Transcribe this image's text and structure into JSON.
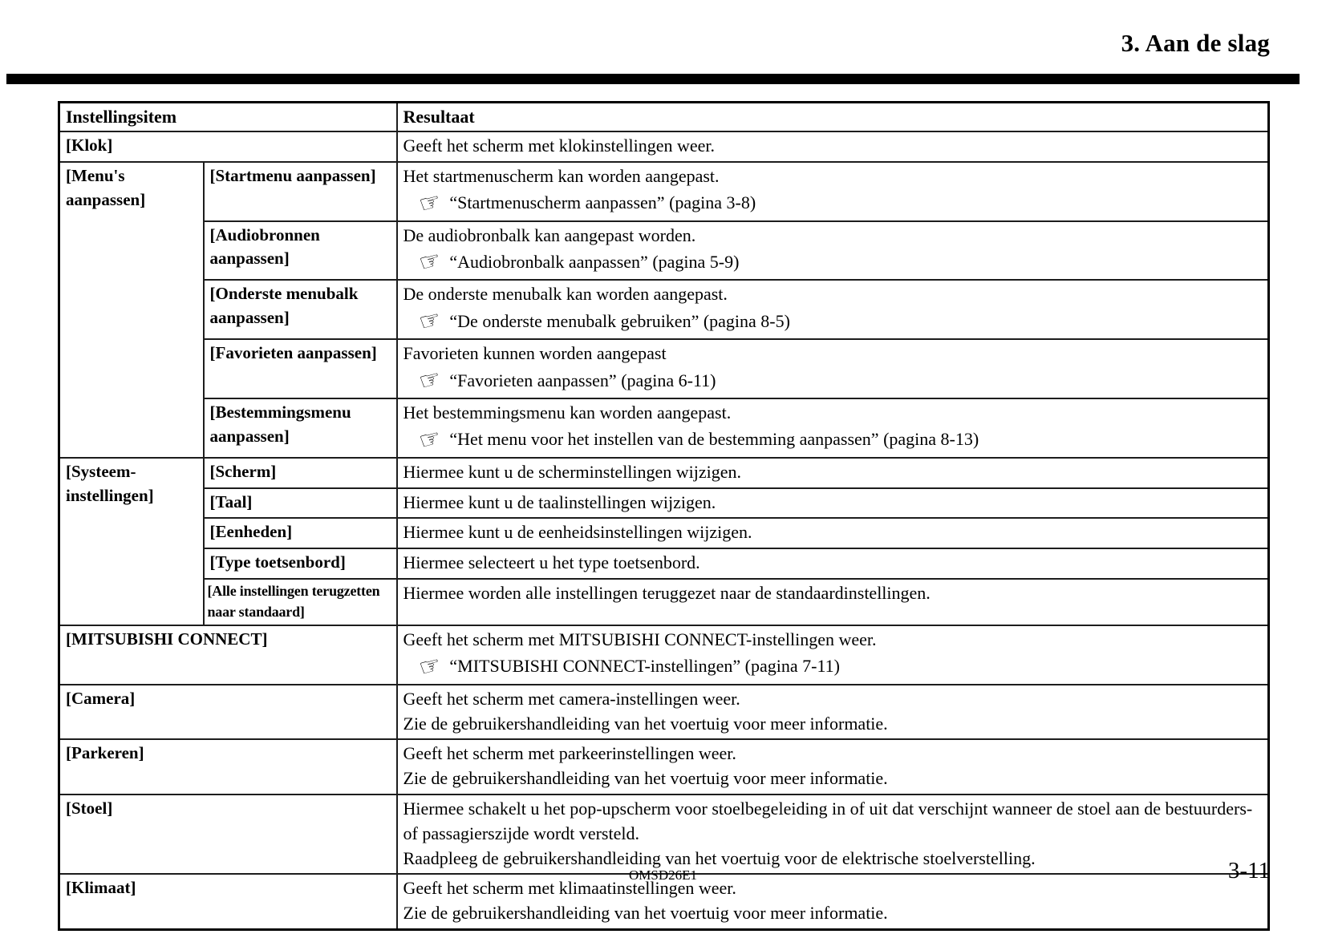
{
  "page": {
    "title": "3. Aan de slag",
    "footer_code": "OMSD26E1",
    "page_number": "3-11"
  },
  "icons": {
    "ref_hand": "☞"
  },
  "table": {
    "header": {
      "item": "Instellingsitem",
      "result": "Resultaat"
    },
    "rows": [
      {
        "item": "[Klok]",
        "merged": true,
        "lines": [
          {
            "type": "text",
            "text": "Geeft het scherm met klokinstellingen weer."
          }
        ]
      },
      {
        "group": {
          "label": "[Menu's aanpassen]",
          "rowspan": 5
        },
        "item": "[Startmenu aanpassen]",
        "lines": [
          {
            "type": "text",
            "text": "Het startmenuscherm kan worden aangepast."
          },
          {
            "type": "ref",
            "text": "“Startmenuscherm aanpassen” (pagina 3-8)"
          }
        ]
      },
      {
        "item": "[Audiobronnen aanpassen]",
        "lines": [
          {
            "type": "text",
            "text": "De audiobronbalk kan aangepast worden."
          },
          {
            "type": "ref",
            "text": "“Audiobronbalk aanpassen” (pagina 5-9)"
          }
        ]
      },
      {
        "item": "[Onderste menubalk aanpassen]",
        "lines": [
          {
            "type": "text",
            "text": "De onderste menubalk kan worden aangepast."
          },
          {
            "type": "ref",
            "text": "“De onderste menubalk gebruiken” (pagina 8-5)"
          }
        ]
      },
      {
        "item": "[Favorieten aanpassen]",
        "lines": [
          {
            "type": "text",
            "text": "Favorieten kunnen worden aangepast"
          },
          {
            "type": "ref",
            "text": "“Favorieten aanpassen” (pagina 6-11)"
          }
        ]
      },
      {
        "item": "[Bestemmingsmenu aanpassen]",
        "lines": [
          {
            "type": "text",
            "text": "Het bestemmingsmenu kan worden aangepast."
          },
          {
            "type": "ref",
            "text": "“Het menu voor het instellen van de bestemming aanpassen” (pagina 8-13)"
          }
        ]
      },
      {
        "group": {
          "label": "[Systeem-instellingen]",
          "rowspan": 5
        },
        "item": "[Scherm]",
        "lines": [
          {
            "type": "text",
            "text": "Hiermee kunt u de scherminstellingen wijzigen."
          }
        ]
      },
      {
        "item": "[Taal]",
        "lines": [
          {
            "type": "text",
            "text": "Hiermee kunt u de taalinstellingen wijzigen."
          }
        ]
      },
      {
        "item": "[Eenheden]",
        "lines": [
          {
            "type": "text",
            "text": "Hiermee kunt u de eenheidsinstellingen wijzigen."
          }
        ]
      },
      {
        "item": "[Type toetsenbord]",
        "lines": [
          {
            "type": "text",
            "text": "Hiermee selecteert u het type toetsenbord."
          }
        ]
      },
      {
        "item": "[Alle instellingen terugzetten naar standaard]",
        "lines": [
          {
            "type": "text",
            "text": "Hiermee worden alle instellingen teruggezet naar de standaardinstellingen."
          }
        ]
      },
      {
        "item": "[MITSUBISHI CONNECT]",
        "merged": true,
        "lines": [
          {
            "type": "text",
            "text": "Geeft het scherm met MITSUBISHI CONNECT-instellingen weer."
          },
          {
            "type": "ref",
            "text": "“MITSUBISHI CONNECT-instellingen” (pagina 7-11)"
          }
        ]
      },
      {
        "item": "[Camera]",
        "merged": true,
        "lines": [
          {
            "type": "text",
            "text": "Geeft het scherm met camera-instellingen weer."
          },
          {
            "type": "text",
            "text": "Zie de gebruikershandleiding van het voertuig voor meer informatie."
          }
        ]
      },
      {
        "item": "[Parkeren]",
        "merged": true,
        "lines": [
          {
            "type": "text",
            "text": "Geeft het scherm met parkeerinstellingen weer."
          },
          {
            "type": "text",
            "text": "Zie de gebruikershandleiding van het voertuig voor meer informatie."
          }
        ]
      },
      {
        "item": "[Stoel]",
        "merged": true,
        "lines": [
          {
            "type": "text",
            "text": "Hiermee schakelt u het pop-upscherm voor stoelbegeleiding in of uit dat verschijnt wanneer de stoel aan de bestuurders- of passagierszijde wordt versteld."
          },
          {
            "type": "text",
            "text": "Raadpleeg de gebruikershandleiding van het voertuig voor de elektrische stoelverstelling."
          }
        ]
      },
      {
        "item": "[Klimaat]",
        "merged": true,
        "lines": [
          {
            "type": "text",
            "text": "Geeft het scherm met klimaatinstellingen weer."
          },
          {
            "type": "text",
            "text": "Zie de gebruikershandleiding van het voertuig voor meer informatie."
          }
        ]
      }
    ]
  }
}
